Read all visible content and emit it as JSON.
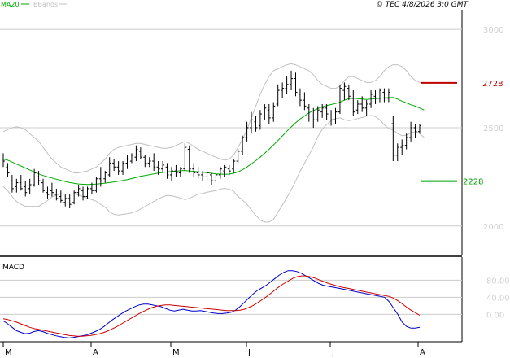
{
  "header": {
    "legend_ma20": "MA20",
    "legend_bbands": "BBands",
    "copyright": "© TEC 4/8/2026 3:0 GMT"
  },
  "colors": {
    "price_bars": "#000000",
    "ma20": "#00aa00",
    "bbands": "#c0c0c0",
    "resistance": "#c00000",
    "support": "#00a000",
    "macd": "#0000cc",
    "signal": "#cc0000",
    "grid": "#cccccc",
    "axis_text": "#d0d0d0"
  },
  "chart_data": [
    {
      "type": "ohlc",
      "title": "",
      "x_axis": {
        "ticks": [
          "M",
          "A",
          "M",
          "J",
          "J",
          "A"
        ]
      },
      "y_axis": {
        "ticks": [
          "2000",
          "2500",
          "3000"
        ],
        "range": [
          1850,
          3100
        ]
      },
      "resistance": {
        "value": 2728,
        "label": "2728"
      },
      "support": {
        "value": 2228,
        "label": "2228"
      },
      "series": [
        {
          "name": "MA20",
          "color": "#00aa00"
        },
        {
          "name": "BBands",
          "color": "#c0c0c0"
        }
      ],
      "bars": [
        {
          "o": 2340,
          "h": 2370,
          "l": 2300,
          "c": 2330
        },
        {
          "o": 2300,
          "h": 2320,
          "l": 2250,
          "c": 2270
        },
        {
          "o": 2230,
          "h": 2260,
          "l": 2170,
          "c": 2190
        },
        {
          "o": 2200,
          "h": 2240,
          "l": 2170,
          "c": 2220
        },
        {
          "o": 2220,
          "h": 2260,
          "l": 2180,
          "c": 2190
        },
        {
          "o": 2200,
          "h": 2230,
          "l": 2150,
          "c": 2170
        },
        {
          "o": 2190,
          "h": 2240,
          "l": 2160,
          "c": 2210
        },
        {
          "o": 2210,
          "h": 2290,
          "l": 2200,
          "c": 2270
        },
        {
          "o": 2250,
          "h": 2280,
          "l": 2210,
          "c": 2230
        },
        {
          "o": 2220,
          "h": 2240,
          "l": 2170,
          "c": 2180
        },
        {
          "o": 2170,
          "h": 2200,
          "l": 2140,
          "c": 2160
        },
        {
          "o": 2180,
          "h": 2220,
          "l": 2150,
          "c": 2170
        },
        {
          "o": 2160,
          "h": 2190,
          "l": 2130,
          "c": 2140
        },
        {
          "o": 2150,
          "h": 2180,
          "l": 2120,
          "c": 2130
        },
        {
          "o": 2120,
          "h": 2160,
          "l": 2100,
          "c": 2140
        },
        {
          "o": 2140,
          "h": 2160,
          "l": 2090,
          "c": 2110
        },
        {
          "o": 2120,
          "h": 2180,
          "l": 2110,
          "c": 2170
        },
        {
          "o": 2170,
          "h": 2210,
          "l": 2150,
          "c": 2190
        },
        {
          "o": 2180,
          "h": 2200,
          "l": 2130,
          "c": 2150
        },
        {
          "o": 2150,
          "h": 2200,
          "l": 2140,
          "c": 2190
        },
        {
          "o": 2190,
          "h": 2220,
          "l": 2160,
          "c": 2180
        },
        {
          "o": 2180,
          "h": 2250,
          "l": 2170,
          "c": 2240
        },
        {
          "o": 2240,
          "h": 2300,
          "l": 2200,
          "c": 2230
        },
        {
          "o": 2240,
          "h": 2280,
          "l": 2220,
          "c": 2270
        },
        {
          "o": 2260,
          "h": 2350,
          "l": 2250,
          "c": 2320
        },
        {
          "o": 2320,
          "h": 2340,
          "l": 2280,
          "c": 2300
        },
        {
          "o": 2300,
          "h": 2330,
          "l": 2260,
          "c": 2280
        },
        {
          "o": 2280,
          "h": 2330,
          "l": 2260,
          "c": 2320
        },
        {
          "o": 2320,
          "h": 2360,
          "l": 2290,
          "c": 2340
        },
        {
          "o": 2330,
          "h": 2370,
          "l": 2320,
          "c": 2360
        },
        {
          "o": 2350,
          "h": 2410,
          "l": 2330,
          "c": 2390
        },
        {
          "o": 2380,
          "h": 2400,
          "l": 2340,
          "c": 2350
        },
        {
          "o": 2350,
          "h": 2360,
          "l": 2300,
          "c": 2320
        },
        {
          "o": 2320,
          "h": 2350,
          "l": 2300,
          "c": 2330
        },
        {
          "o": 2330,
          "h": 2370,
          "l": 2280,
          "c": 2300
        },
        {
          "o": 2300,
          "h": 2330,
          "l": 2260,
          "c": 2290
        },
        {
          "o": 2290,
          "h": 2330,
          "l": 2270,
          "c": 2310
        },
        {
          "o": 2300,
          "h": 2320,
          "l": 2240,
          "c": 2260
        },
        {
          "o": 2260,
          "h": 2300,
          "l": 2230,
          "c": 2280
        },
        {
          "o": 2280,
          "h": 2310,
          "l": 2250,
          "c": 2270
        },
        {
          "o": 2270,
          "h": 2300,
          "l": 2250,
          "c": 2290
        },
        {
          "o": 2290,
          "h": 2420,
          "l": 2280,
          "c": 2400
        },
        {
          "o": 2390,
          "h": 2410,
          "l": 2270,
          "c": 2290
        },
        {
          "o": 2290,
          "h": 2320,
          "l": 2250,
          "c": 2270
        },
        {
          "o": 2270,
          "h": 2300,
          "l": 2240,
          "c": 2260
        },
        {
          "o": 2260,
          "h": 2280,
          "l": 2230,
          "c": 2250
        },
        {
          "o": 2250,
          "h": 2290,
          "l": 2230,
          "c": 2270
        },
        {
          "o": 2260,
          "h": 2270,
          "l": 2210,
          "c": 2230
        },
        {
          "o": 2230,
          "h": 2280,
          "l": 2220,
          "c": 2260
        },
        {
          "o": 2260,
          "h": 2300,
          "l": 2240,
          "c": 2290
        },
        {
          "o": 2280,
          "h": 2310,
          "l": 2250,
          "c": 2300
        },
        {
          "o": 2290,
          "h": 2310,
          "l": 2260,
          "c": 2280
        },
        {
          "o": 2290,
          "h": 2340,
          "l": 2270,
          "c": 2330
        },
        {
          "o": 2330,
          "h": 2390,
          "l": 2320,
          "c": 2380
        },
        {
          "o": 2380,
          "h": 2460,
          "l": 2360,
          "c": 2450
        },
        {
          "o": 2450,
          "h": 2530,
          "l": 2430,
          "c": 2500
        },
        {
          "o": 2500,
          "h": 2580,
          "l": 2470,
          "c": 2540
        },
        {
          "o": 2530,
          "h": 2560,
          "l": 2480,
          "c": 2500
        },
        {
          "o": 2510,
          "h": 2590,
          "l": 2490,
          "c": 2570
        },
        {
          "o": 2560,
          "h": 2620,
          "l": 2540,
          "c": 2600
        },
        {
          "o": 2590,
          "h": 2620,
          "l": 2520,
          "c": 2550
        },
        {
          "o": 2550,
          "h": 2630,
          "l": 2530,
          "c": 2610
        },
        {
          "o": 2620,
          "h": 2720,
          "l": 2610,
          "c": 2690
        },
        {
          "o": 2690,
          "h": 2730,
          "l": 2650,
          "c": 2700
        },
        {
          "o": 2700,
          "h": 2760,
          "l": 2670,
          "c": 2720
        },
        {
          "o": 2720,
          "h": 2790,
          "l": 2690,
          "c": 2750
        },
        {
          "o": 2750,
          "h": 2780,
          "l": 2660,
          "c": 2680
        },
        {
          "o": 2670,
          "h": 2700,
          "l": 2610,
          "c": 2640
        },
        {
          "o": 2640,
          "h": 2680,
          "l": 2590,
          "c": 2610
        },
        {
          "o": 2600,
          "h": 2620,
          "l": 2530,
          "c": 2560
        },
        {
          "o": 2560,
          "h": 2600,
          "l": 2500,
          "c": 2540
        },
        {
          "o": 2540,
          "h": 2610,
          "l": 2530,
          "c": 2590
        },
        {
          "o": 2580,
          "h": 2620,
          "l": 2550,
          "c": 2600
        },
        {
          "o": 2600,
          "h": 2620,
          "l": 2540,
          "c": 2570
        },
        {
          "o": 2560,
          "h": 2590,
          "l": 2510,
          "c": 2540
        },
        {
          "o": 2540,
          "h": 2600,
          "l": 2520,
          "c": 2580
        },
        {
          "o": 2580,
          "h": 2720,
          "l": 2570,
          "c": 2700
        },
        {
          "o": 2690,
          "h": 2730,
          "l": 2640,
          "c": 2710
        },
        {
          "o": 2700,
          "h": 2720,
          "l": 2640,
          "c": 2660
        },
        {
          "o": 2650,
          "h": 2690,
          "l": 2560,
          "c": 2580
        },
        {
          "o": 2590,
          "h": 2640,
          "l": 2570,
          "c": 2620
        },
        {
          "o": 2620,
          "h": 2660,
          "l": 2580,
          "c": 2600
        },
        {
          "o": 2600,
          "h": 2640,
          "l": 2560,
          "c": 2620
        },
        {
          "o": 2620,
          "h": 2690,
          "l": 2600,
          "c": 2670
        },
        {
          "o": 2660,
          "h": 2690,
          "l": 2620,
          "c": 2650
        },
        {
          "o": 2650,
          "h": 2700,
          "l": 2630,
          "c": 2690
        },
        {
          "o": 2680,
          "h": 2700,
          "l": 2630,
          "c": 2650
        },
        {
          "o": 2650,
          "h": 2700,
          "l": 2630,
          "c": 2680
        },
        {
          "o": 2520,
          "h": 2560,
          "l": 2330,
          "c": 2360
        },
        {
          "o": 2360,
          "h": 2420,
          "l": 2330,
          "c": 2400
        },
        {
          "o": 2400,
          "h": 2440,
          "l": 2360,
          "c": 2410
        },
        {
          "o": 2410,
          "h": 2470,
          "l": 2390,
          "c": 2450
        },
        {
          "o": 2450,
          "h": 2530,
          "l": 2430,
          "c": 2500
        },
        {
          "o": 2500,
          "h": 2520,
          "l": 2450,
          "c": 2480
        },
        {
          "o": 2480,
          "h": 2520,
          "l": 2470,
          "c": 2510
        }
      ],
      "ma20": [
        2340,
        2335,
        2325,
        2315,
        2305,
        2295,
        2285,
        2275,
        2265,
        2257,
        2250,
        2244,
        2238,
        2232,
        2226,
        2221,
        2217,
        2214,
        2212,
        2211,
        2212,
        2213,
        2215,
        2218,
        2221,
        2224,
        2228,
        2232,
        2236,
        2241,
        2247,
        2253,
        2257,
        2261,
        2265,
        2269,
        2272,
        2275,
        2277,
        2279,
        2281,
        2282,
        2280,
        2278,
        2276,
        2273,
        2271,
        2268,
        2265,
        2264,
        2263,
        2264,
        2268,
        2275,
        2286,
        2300,
        2316,
        2332,
        2350,
        2370,
        2390,
        2412,
        2435,
        2458,
        2482,
        2504,
        2525,
        2544,
        2560,
        2575,
        2587,
        2597,
        2606,
        2613,
        2618,
        2623,
        2630,
        2640,
        2648,
        2650,
        2648,
        2646,
        2644,
        2646,
        2648,
        2650,
        2652,
        2653,
        2654,
        2645,
        2635,
        2626,
        2617,
        2610,
        2600,
        2590
      ],
      "bb_upper": [
        2480,
        2490,
        2500,
        2505,
        2500,
        2490,
        2470,
        2450,
        2430,
        2400,
        2370,
        2340,
        2320,
        2300,
        2290,
        2280,
        2270,
        2270,
        2275,
        2280,
        2290,
        2300,
        2320,
        2340,
        2370,
        2390,
        2400,
        2405,
        2410,
        2415,
        2420,
        2420,
        2415,
        2410,
        2405,
        2400,
        2395,
        2395,
        2400,
        2410,
        2420,
        2430,
        2420,
        2405,
        2390,
        2380,
        2370,
        2360,
        2350,
        2340,
        2335,
        2340,
        2360,
        2400,
        2440,
        2490,
        2550,
        2610,
        2670,
        2720,
        2760,
        2790,
        2800,
        2810,
        2820,
        2825,
        2820,
        2810,
        2800,
        2790,
        2770,
        2740,
        2720,
        2710,
        2700,
        2700,
        2710,
        2740,
        2760,
        2760,
        2750,
        2740,
        2730,
        2730,
        2740,
        2760,
        2790,
        2810,
        2820,
        2820,
        2810,
        2790,
        2760,
        2740,
        2730,
        2730
      ],
      "bb_lower": [
        2200,
        2180,
        2150,
        2125,
        2110,
        2100,
        2100,
        2100,
        2100,
        2114,
        2130,
        2148,
        2156,
        2164,
        2162,
        2162,
        2164,
        2158,
        2149,
        2142,
        2134,
        2126,
        2110,
        2096,
        2072,
        2058,
        2056,
        2059,
        2062,
        2067,
        2074,
        2086,
        2099,
        2112,
        2125,
        2138,
        2149,
        2155,
        2154,
        2148,
        2142,
        2134,
        2140,
        2151,
        2162,
        2166,
        2172,
        2176,
        2180,
        2188,
        2191,
        2188,
        2176,
        2150,
        2132,
        2110,
        2082,
        2054,
        2030,
        2020,
        2020,
        2034,
        2070,
        2106,
        2144,
        2183,
        2230,
        2278,
        2320,
        2360,
        2404,
        2454,
        2492,
        2516,
        2536,
        2546,
        2550,
        2540,
        2536,
        2540,
        2546,
        2552,
        2558,
        2562,
        2556,
        2540,
        2514,
        2496,
        2488,
        2470,
        2460,
        2462,
        2474,
        2480,
        2470,
        2450
      ]
    },
    {
      "type": "line",
      "title": "MACD",
      "x_axis": {
        "ticks": [
          "M",
          "A",
          "M",
          "J",
          "J",
          "A"
        ]
      },
      "y_axis": {
        "ticks": [
          "0.00",
          "40.00",
          "80.00"
        ],
        "range": [
          -60,
          130
        ]
      },
      "series": [
        {
          "name": "",
          "color": "#0000cc",
          "values": [
            -15,
            -22,
            -30,
            -38,
            -42,
            -45,
            -44,
            -40,
            -38,
            -40,
            -44,
            -47,
            -50,
            -52,
            -54,
            -55,
            -54,
            -52,
            -50,
            -48,
            -44,
            -40,
            -35,
            -28,
            -20,
            -12,
            -5,
            2,
            8,
            13,
            18,
            22,
            24,
            24,
            22,
            20,
            18,
            14,
            10,
            8,
            10,
            12,
            10,
            8,
            8,
            9,
            7,
            5,
            3,
            2,
            2,
            3,
            5,
            10,
            18,
            28,
            38,
            48,
            56,
            62,
            68,
            76,
            84,
            92,
            98,
            102,
            102,
            100,
            96,
            90,
            84,
            78,
            72,
            68,
            66,
            64,
            62,
            60,
            58,
            56,
            54,
            52,
            50,
            48,
            46,
            44,
            42,
            40,
            30,
            15,
            0,
            -18,
            -28,
            -32,
            -32,
            -30
          ]
        },
        {
          "name": "",
          "color": "#cc0000",
          "values": [
            -10,
            -12,
            -15,
            -18,
            -22,
            -26,
            -30,
            -33,
            -35,
            -37,
            -39,
            -41,
            -43,
            -45,
            -47,
            -49,
            -50,
            -51,
            -51,
            -50,
            -49,
            -47,
            -45,
            -42,
            -38,
            -33,
            -28,
            -22,
            -16,
            -10,
            -4,
            2,
            7,
            12,
            16,
            19,
            21,
            22,
            22,
            21,
            20,
            19,
            18,
            17,
            16,
            15,
            14,
            13,
            12,
            11,
            10,
            9,
            9,
            9,
            10,
            12,
            16,
            21,
            27,
            34,
            41,
            49,
            57,
            65,
            72,
            78,
            84,
            88,
            90,
            90,
            88,
            85,
            81,
            77,
            73,
            70,
            67,
            64,
            62,
            60,
            58,
            56,
            54,
            52,
            50,
            48,
            46,
            44,
            42,
            38,
            32,
            25,
            17,
            10,
            4,
            -2
          ]
        }
      ]
    }
  ]
}
